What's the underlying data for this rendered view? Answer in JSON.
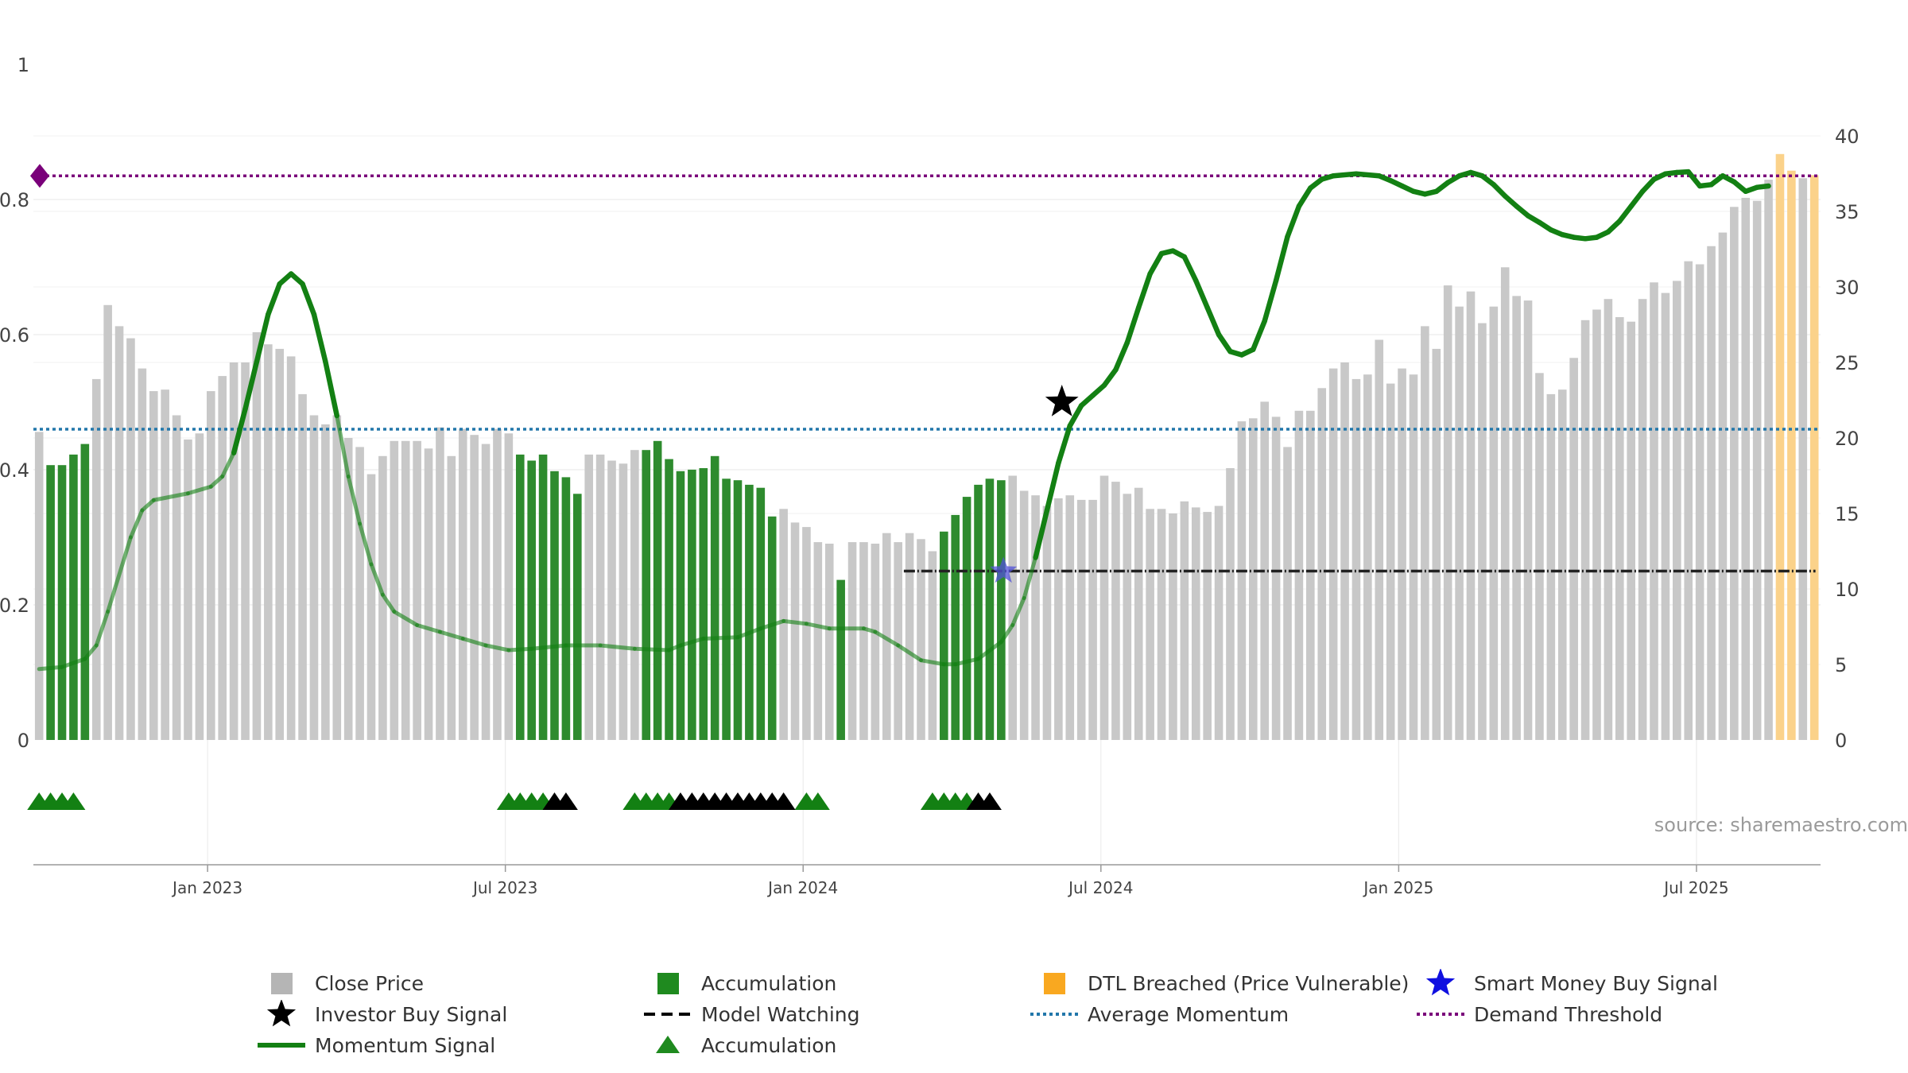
{
  "chart_data": {
    "type": "bar",
    "title": "",
    "source": "source: sharemaestro.com",
    "left_axis": {
      "ticks": [
        "0",
        "0.2",
        "0.4",
        "0.6",
        "0.8",
        "1"
      ],
      "values": [
        0,
        0.2,
        0.4,
        0.6,
        0.8,
        1.0
      ]
    },
    "right_axis": {
      "ticks": [
        "0",
        "5",
        "10",
        "15",
        "20",
        "25",
        "30",
        "35",
        "40"
      ],
      "range": [
        0,
        40
      ]
    },
    "x_axis": {
      "labels": [
        "Jan 2023",
        "Jul 2023",
        "Jan 2024",
        "Jul 2024",
        "Jan 2025",
        "Jul 2025"
      ],
      "label_bar_index": [
        15,
        41,
        67,
        93,
        119,
        145
      ]
    },
    "bar_count": 156,
    "close_price": [
      20.4,
      18.2,
      18.2,
      18.9,
      19.6,
      23.9,
      28.8,
      27.4,
      26.6,
      24.6,
      23.1,
      23.2,
      21.5,
      19.9,
      20.3,
      23.1,
      24.1,
      25.0,
      25.0,
      27.0,
      26.2,
      25.9,
      25.4,
      22.9,
      21.5,
      20.9,
      21.5,
      20.0,
      19.4,
      17.6,
      18.8,
      19.8,
      19.8,
      19.8,
      19.3,
      20.7,
      18.8,
      20.6,
      20.2,
      19.6,
      20.6,
      20.3,
      18.9,
      18.5,
      18.9,
      17.8,
      17.4,
      16.3,
      18.9,
      18.9,
      18.5,
      18.3,
      19.2,
      19.2,
      19.8,
      18.6,
      17.8,
      17.9,
      18.0,
      18.8,
      17.3,
      17.2,
      16.9,
      16.7,
      14.8,
      15.3,
      14.4,
      14.1,
      13.1,
      13.0,
      10.6,
      13.1,
      13.1,
      13.0,
      13.7,
      13.1,
      13.7,
      13.3,
      12.5,
      13.8,
      14.9,
      16.1,
      16.9,
      17.3,
      17.2,
      17.5,
      16.5,
      16.2,
      15.5,
      16.0,
      16.2,
      15.9,
      15.9,
      17.5,
      17.1,
      16.3,
      16.7,
      15.3,
      15.3,
      15.0,
      15.8,
      15.4,
      15.1,
      15.5,
      18.0,
      21.1,
      21.3,
      22.4,
      21.4,
      19.4,
      21.8,
      21.8,
      23.3,
      24.6,
      25.0,
      23.9,
      24.2,
      26.5,
      23.6,
      24.6,
      24.2,
      27.4,
      25.9,
      30.1,
      28.7,
      29.7,
      27.6,
      28.7,
      31.3,
      29.4,
      29.1,
      24.3,
      22.9,
      23.2,
      25.3,
      27.8,
      28.5,
      29.2,
      28.0,
      27.7,
      29.2,
      30.3,
      29.6,
      30.4,
      31.7,
      31.5,
      32.7,
      33.6,
      35.3,
      35.9,
      35.7,
      37.1,
      38.8,
      37.7,
      37.2,
      37.4
    ],
    "accumulation_bar_index": [
      1,
      2,
      3,
      4,
      42,
      43,
      44,
      45,
      46,
      47,
      53,
      54,
      55,
      56,
      57,
      58,
      59,
      60,
      61,
      62,
      63,
      64,
      70,
      79,
      80,
      81,
      82,
      83,
      84
    ],
    "dtl_breached_bar_index": [
      152,
      153,
      155
    ],
    "momentum_signal": [
      [
        0,
        0.105
      ],
      [
        2,
        0.108
      ],
      [
        4,
        0.12
      ],
      [
        5,
        0.14
      ],
      [
        6,
        0.19
      ],
      [
        8,
        0.3
      ],
      [
        9,
        0.34
      ],
      [
        10,
        0.355
      ],
      [
        13,
        0.365
      ],
      [
        15,
        0.375
      ],
      [
        16,
        0.39
      ],
      [
        17,
        0.425
      ],
      [
        18,
        0.49
      ],
      [
        19,
        0.56
      ],
      [
        20,
        0.63
      ],
      [
        21,
        0.675
      ],
      [
        22,
        0.69
      ],
      [
        23,
        0.675
      ],
      [
        24,
        0.63
      ],
      [
        25,
        0.56
      ],
      [
        26,
        0.48
      ],
      [
        27,
        0.39
      ],
      [
        28,
        0.32
      ],
      [
        29,
        0.26
      ],
      [
        30,
        0.215
      ],
      [
        31,
        0.19
      ],
      [
        33,
        0.17
      ],
      [
        35,
        0.16
      ],
      [
        37,
        0.15
      ],
      [
        39,
        0.14
      ],
      [
        41,
        0.133
      ],
      [
        43,
        0.135
      ],
      [
        46,
        0.14
      ],
      [
        49,
        0.14
      ],
      [
        52,
        0.135
      ],
      [
        55,
        0.133
      ],
      [
        56,
        0.14
      ],
      [
        58,
        0.15
      ],
      [
        61,
        0.152
      ],
      [
        63,
        0.165
      ],
      [
        65,
        0.176
      ],
      [
        67,
        0.172
      ],
      [
        69,
        0.165
      ],
      [
        72,
        0.165
      ],
      [
        73,
        0.16
      ],
      [
        75,
        0.14
      ],
      [
        77,
        0.118
      ],
      [
        79,
        0.112
      ],
      [
        80,
        0.112
      ],
      [
        82,
        0.12
      ],
      [
        84,
        0.145
      ],
      [
        85,
        0.17
      ],
      [
        86,
        0.21
      ],
      [
        87,
        0.27
      ],
      [
        88,
        0.34
      ],
      [
        89,
        0.41
      ],
      [
        90,
        0.465
      ],
      [
        91,
        0.495
      ],
      [
        92,
        0.51
      ],
      [
        93,
        0.525
      ],
      [
        94,
        0.548
      ],
      [
        95,
        0.588
      ],
      [
        96,
        0.64
      ],
      [
        97,
        0.69
      ],
      [
        98,
        0.72
      ],
      [
        99,
        0.724
      ],
      [
        100,
        0.715
      ],
      [
        101,
        0.68
      ],
      [
        102,
        0.64
      ],
      [
        103,
        0.6
      ],
      [
        104,
        0.575
      ],
      [
        105,
        0.57
      ],
      [
        106,
        0.578
      ],
      [
        107,
        0.62
      ],
      [
        108,
        0.68
      ],
      [
        109,
        0.745
      ],
      [
        110,
        0.79
      ],
      [
        111,
        0.817
      ],
      [
        112,
        0.83
      ],
      [
        113,
        0.835
      ],
      [
        115,
        0.838
      ],
      [
        117,
        0.835
      ],
      [
        118,
        0.828
      ],
      [
        119,
        0.82
      ],
      [
        120,
        0.812
      ],
      [
        121,
        0.808
      ],
      [
        122,
        0.812
      ],
      [
        123,
        0.825
      ],
      [
        124,
        0.835
      ],
      [
        125,
        0.84
      ],
      [
        126,
        0.835
      ],
      [
        127,
        0.822
      ],
      [
        128,
        0.805
      ],
      [
        129,
        0.79
      ],
      [
        130,
        0.776
      ],
      [
        131,
        0.766
      ],
      [
        132,
        0.755
      ],
      [
        133,
        0.748
      ],
      [
        134,
        0.744
      ],
      [
        135,
        0.742
      ],
      [
        136,
        0.744
      ],
      [
        137,
        0.752
      ],
      [
        138,
        0.768
      ],
      [
        139,
        0.79
      ],
      [
        140,
        0.812
      ],
      [
        141,
        0.83
      ],
      [
        142,
        0.838
      ],
      [
        143,
        0.84
      ],
      [
        144,
        0.841
      ],
      [
        145,
        0.82
      ],
      [
        146,
        0.822
      ],
      [
        147,
        0.835
      ],
      [
        148,
        0.826
      ],
      [
        149,
        0.812
      ],
      [
        150,
        0.818
      ],
      [
        151,
        0.82
      ]
    ],
    "momentum_faded_ranges": [
      [
        0,
        17
      ],
      [
        26,
        87
      ],
      [
        151,
        156
      ]
    ],
    "average_momentum": 0.46,
    "demand_threshold": 0.835,
    "model_watching": {
      "value": 0.25,
      "start_bar_index": 76,
      "end_bar_index": 155
    },
    "investor_buy_signal": [
      {
        "bar_index": 89.3,
        "value": 0.5
      }
    ],
    "smart_money_buy_signal": [
      {
        "bar_index": 84.2,
        "value": 0.25
      }
    ],
    "accumulation_markers": {
      "green": [
        0.5,
        1.5,
        2.5,
        3.5,
        41.5,
        42.5,
        43.5,
        44.5,
        52.5,
        53.5,
        54.5,
        55.5,
        67.5,
        68.5,
        78.5,
        79.5,
        80.5,
        81.5
      ],
      "black": [
        45.5,
        46.5,
        56.5,
        57.5,
        58.5,
        59.5,
        60.5,
        61.5,
        62.5,
        63.5,
        64.5,
        65.5,
        82.5,
        83.5
      ]
    },
    "demand_threshold_marker": {
      "value": 0.835
    },
    "colors": {
      "close_price": "#c8c8c8",
      "accumulation": "#2e8b2e",
      "dtl_breached": "#fbd28a",
      "momentum": "#138013",
      "average_momentum": "#2277aa",
      "demand_threshold": "#7a007a",
      "model_watching": "#222222",
      "investor_buy": "#000000",
      "smart_money": "#5151d8"
    },
    "legend": [
      {
        "key": "close-price",
        "label": "Close Price",
        "symbol": "square",
        "color": "#b5b5b5"
      },
      {
        "key": "accumulation-bar",
        "label": "Accumulation",
        "symbol": "square",
        "color": "#1f8a1f"
      },
      {
        "key": "dtl-breached",
        "label": "DTL Breached (Price Vulnerable)",
        "symbol": "square",
        "color": "#f9a820"
      },
      {
        "key": "smart-money-buy-signal",
        "label": "Smart Money Buy Signal",
        "symbol": "star",
        "color": "#1010e0"
      },
      {
        "key": "investor-buy-signal",
        "label": "Investor Buy Signal",
        "symbol": "star",
        "color": "#000000"
      },
      {
        "key": "model-watching",
        "label": "Model Watching",
        "symbol": "dash",
        "color": "#000000"
      },
      {
        "key": "average-momentum",
        "label": "Average Momentum",
        "symbol": "dot",
        "color": "#2277aa"
      },
      {
        "key": "demand-threshold",
        "label": "Demand Threshold",
        "symbol": "dot",
        "color": "#7a007a"
      },
      {
        "key": "momentum-signal",
        "label": "Momentum Signal",
        "symbol": "line",
        "color": "#138013"
      },
      {
        "key": "accumulation-marker",
        "label": "Accumulation",
        "symbol": "triangle",
        "color": "#1f8a1f"
      }
    ]
  }
}
